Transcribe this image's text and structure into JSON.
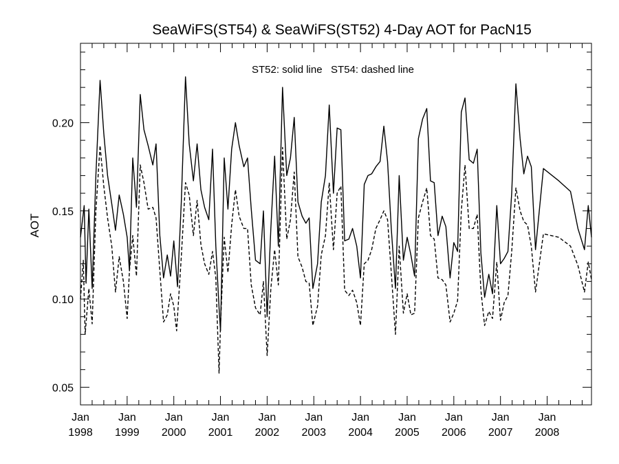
{
  "chart_data": {
    "type": "line",
    "title": "SeaWiFS(ST54) & SeaWiFS(ST52) 4-Day AOT for PacN15",
    "annotation": "ST52: solid line   ST54: dashed line",
    "xlabel": "",
    "ylabel": "AOT",
    "xlim": [
      1998.0,
      2008.95
    ],
    "ylim": [
      0.04,
      0.245
    ],
    "grid": false,
    "legend": "none",
    "x_ticks": [
      {
        "month": "Jan",
        "year": "1998",
        "value": 1998.0
      },
      {
        "month": "Jan",
        "year": "1999",
        "value": 1999.0
      },
      {
        "month": "Jan",
        "year": "2000",
        "value": 2000.0
      },
      {
        "month": "Jan",
        "year": "2001",
        "value": 2001.0
      },
      {
        "month": "Jan",
        "year": "2002",
        "value": 2002.0
      },
      {
        "month": "Jan",
        "year": "2003",
        "value": 2003.0
      },
      {
        "month": "Jan",
        "year": "2004",
        "value": 2004.0
      },
      {
        "month": "Jan",
        "year": "2005",
        "value": 2005.0
      },
      {
        "month": "Jan",
        "year": "2006",
        "value": 2006.0
      },
      {
        "month": "Jan",
        "year": "2007",
        "value": 2007.0
      },
      {
        "month": "Jan",
        "year": "2008",
        "value": 2008.0
      }
    ],
    "y_ticks": [
      "0.05",
      "0.10",
      "0.15",
      "0.20"
    ],
    "series": [
      {
        "style": "solid",
        "color": "#000000",
        "points": [
          [
            1998.0,
            0.135
          ],
          [
            1998.08,
            0.153
          ],
          [
            1998.12,
            0.109
          ],
          [
            1998.18,
            0.151
          ],
          [
            1998.25,
            0.106
          ],
          [
            1998.33,
            0.17
          ],
          [
            1998.42,
            0.224
          ],
          [
            1998.5,
            0.194
          ],
          [
            1998.58,
            0.17
          ],
          [
            1998.67,
            0.154
          ],
          [
            1998.75,
            0.139
          ],
          [
            1998.83,
            0.159
          ],
          [
            1998.92,
            0.148
          ],
          [
            1999.0,
            0.135
          ],
          [
            1999.05,
            0.116
          ],
          [
            1999.12,
            0.18
          ],
          [
            1999.2,
            0.152
          ],
          [
            1999.28,
            0.216
          ],
          [
            1999.36,
            0.196
          ],
          [
            1999.45,
            0.187
          ],
          [
            1999.55,
            0.176
          ],
          [
            1999.62,
            0.188
          ],
          [
            1999.7,
            0.136
          ],
          [
            1999.78,
            0.112
          ],
          [
            1999.86,
            0.125
          ],
          [
            1999.93,
            0.113
          ],
          [
            2000.0,
            0.133
          ],
          [
            2000.08,
            0.107
          ],
          [
            2000.16,
            0.155
          ],
          [
            2000.25,
            0.226
          ],
          [
            2000.33,
            0.188
          ],
          [
            2000.42,
            0.167
          ],
          [
            2000.5,
            0.188
          ],
          [
            2000.58,
            0.162
          ],
          [
            2000.66,
            0.152
          ],
          [
            2000.75,
            0.145
          ],
          [
            2000.83,
            0.185
          ],
          [
            2000.9,
            0.13
          ],
          [
            2000.97,
            0.095
          ],
          [
            2001.0,
            0.082
          ],
          [
            2001.08,
            0.18
          ],
          [
            2001.16,
            0.151
          ],
          [
            2001.24,
            0.185
          ],
          [
            2001.32,
            0.2
          ],
          [
            2001.4,
            0.187
          ],
          [
            2001.5,
            0.175
          ],
          [
            2001.58,
            0.18
          ],
          [
            2001.66,
            0.151
          ],
          [
            2001.75,
            0.122
          ],
          [
            2001.85,
            0.12
          ],
          [
            2001.92,
            0.15
          ],
          [
            2002.0,
            0.09
          ],
          [
            2002.08,
            0.14
          ],
          [
            2002.16,
            0.181
          ],
          [
            2002.24,
            0.13
          ],
          [
            2002.33,
            0.22
          ],
          [
            2002.42,
            0.17
          ],
          [
            2002.5,
            0.18
          ],
          [
            2002.58,
            0.203
          ],
          [
            2002.66,
            0.155
          ],
          [
            2002.75,
            0.147
          ],
          [
            2002.83,
            0.143
          ],
          [
            2002.9,
            0.146
          ],
          [
            2002.98,
            0.106
          ],
          [
            2003.08,
            0.12
          ],
          [
            2003.16,
            0.155
          ],
          [
            2003.25,
            0.17
          ],
          [
            2003.33,
            0.21
          ],
          [
            2003.42,
            0.16
          ],
          [
            2003.5,
            0.197
          ],
          [
            2003.58,
            0.196
          ],
          [
            2003.66,
            0.133
          ],
          [
            2003.75,
            0.134
          ],
          [
            2003.83,
            0.14
          ],
          [
            2003.92,
            0.13
          ],
          [
            2004.0,
            0.112
          ],
          [
            2004.08,
            0.165
          ],
          [
            2004.16,
            0.17
          ],
          [
            2004.24,
            0.171
          ],
          [
            2004.33,
            0.175
          ],
          [
            2004.42,
            0.178
          ],
          [
            2004.5,
            0.198
          ],
          [
            2004.58,
            0.178
          ],
          [
            2004.66,
            0.14
          ],
          [
            2004.75,
            0.106
          ],
          [
            2004.83,
            0.17
          ],
          [
            2004.92,
            0.122
          ],
          [
            2005.0,
            0.135
          ],
          [
            2005.08,
            0.125
          ],
          [
            2005.16,
            0.113
          ],
          [
            2005.24,
            0.191
          ],
          [
            2005.33,
            0.202
          ],
          [
            2005.42,
            0.208
          ],
          [
            2005.5,
            0.167
          ],
          [
            2005.58,
            0.166
          ],
          [
            2005.66,
            0.136
          ],
          [
            2005.75,
            0.147
          ],
          [
            2005.83,
            0.141
          ],
          [
            2005.92,
            0.112
          ],
          [
            2006.0,
            0.132
          ],
          [
            2006.08,
            0.127
          ],
          [
            2006.16,
            0.206
          ],
          [
            2006.24,
            0.214
          ],
          [
            2006.33,
            0.179
          ],
          [
            2006.42,
            0.177
          ],
          [
            2006.5,
            0.185
          ],
          [
            2006.58,
            0.126
          ],
          [
            2006.66,
            0.101
          ],
          [
            2006.75,
            0.114
          ],
          [
            2006.83,
            0.103
          ],
          [
            2006.92,
            0.153
          ],
          [
            2007.0,
            0.12
          ],
          [
            2007.08,
            0.123
          ],
          [
            2007.16,
            0.127
          ],
          [
            2007.24,
            0.16
          ],
          [
            2007.33,
            0.222
          ],
          [
            2007.42,
            0.191
          ],
          [
            2007.5,
            0.171
          ],
          [
            2007.58,
            0.181
          ],
          [
            2007.66,
            0.175
          ],
          [
            2007.75,
            0.128
          ],
          [
            2007.92,
            0.174
          ],
          [
            2008.25,
            0.167
          ],
          [
            2008.5,
            0.161
          ],
          [
            2008.66,
            0.14
          ],
          [
            2008.8,
            0.128
          ],
          [
            2008.88,
            0.153
          ],
          [
            2008.95,
            0.135
          ]
        ]
      },
      {
        "style": "dashed",
        "color": "#000000",
        "points": [
          [
            1998.0,
            0.1
          ],
          [
            1998.06,
            0.122
          ],
          [
            1998.1,
            0.08
          ],
          [
            1998.18,
            0.106
          ],
          [
            1998.25,
            0.086
          ],
          [
            1998.33,
            0.15
          ],
          [
            1998.42,
            0.187
          ],
          [
            1998.5,
            0.164
          ],
          [
            1998.58,
            0.146
          ],
          [
            1998.67,
            0.13
          ],
          [
            1998.75,
            0.104
          ],
          [
            1998.83,
            0.124
          ],
          [
            1998.92,
            0.11
          ],
          [
            1999.0,
            0.089
          ],
          [
            1999.05,
            0.116
          ],
          [
            1999.12,
            0.136
          ],
          [
            1999.2,
            0.113
          ],
          [
            1999.28,
            0.176
          ],
          [
            1999.36,
            0.166
          ],
          [
            1999.45,
            0.151
          ],
          [
            1999.55,
            0.152
          ],
          [
            1999.62,
            0.146
          ],
          [
            1999.7,
            0.116
          ],
          [
            1999.78,
            0.087
          ],
          [
            1999.86,
            0.091
          ],
          [
            1999.93,
            0.103
          ],
          [
            2000.0,
            0.096
          ],
          [
            2000.06,
            0.082
          ],
          [
            2000.16,
            0.124
          ],
          [
            2000.25,
            0.166
          ],
          [
            2000.33,
            0.159
          ],
          [
            2000.42,
            0.136
          ],
          [
            2000.5,
            0.156
          ],
          [
            2000.58,
            0.131
          ],
          [
            2000.66,
            0.12
          ],
          [
            2000.75,
            0.114
          ],
          [
            2000.83,
            0.127
          ],
          [
            2000.9,
            0.112
          ],
          [
            2000.97,
            0.058
          ],
          [
            2001.0,
            0.085
          ],
          [
            2001.08,
            0.135
          ],
          [
            2001.16,
            0.115
          ],
          [
            2001.24,
            0.142
          ],
          [
            2001.32,
            0.162
          ],
          [
            2001.4,
            0.147
          ],
          [
            2001.5,
            0.14
          ],
          [
            2001.58,
            0.14
          ],
          [
            2001.66,
            0.108
          ],
          [
            2001.75,
            0.095
          ],
          [
            2001.85,
            0.091
          ],
          [
            2001.92,
            0.11
          ],
          [
            2002.0,
            0.068
          ],
          [
            2002.08,
            0.106
          ],
          [
            2002.16,
            0.128
          ],
          [
            2002.24,
            0.108
          ],
          [
            2002.33,
            0.186
          ],
          [
            2002.42,
            0.134
          ],
          [
            2002.5,
            0.145
          ],
          [
            2002.58,
            0.172
          ],
          [
            2002.66,
            0.124
          ],
          [
            2002.75,
            0.118
          ],
          [
            2002.83,
            0.11
          ],
          [
            2002.9,
            0.109
          ],
          [
            2002.98,
            0.085
          ],
          [
            2003.08,
            0.096
          ],
          [
            2003.16,
            0.125
          ],
          [
            2003.25,
            0.136
          ],
          [
            2003.33,
            0.166
          ],
          [
            2003.42,
            0.128
          ],
          [
            2003.5,
            0.16
          ],
          [
            2003.58,
            0.164
          ],
          [
            2003.66,
            0.105
          ],
          [
            2003.75,
            0.102
          ],
          [
            2003.83,
            0.105
          ],
          [
            2003.92,
            0.098
          ],
          [
            2004.0,
            0.085
          ],
          [
            2004.08,
            0.12
          ],
          [
            2004.16,
            0.122
          ],
          [
            2004.24,
            0.128
          ],
          [
            2004.33,
            0.14
          ],
          [
            2004.42,
            0.145
          ],
          [
            2004.5,
            0.15
          ],
          [
            2004.58,
            0.145
          ],
          [
            2004.66,
            0.115
          ],
          [
            2004.75,
            0.08
          ],
          [
            2004.83,
            0.13
          ],
          [
            2004.92,
            0.092
          ],
          [
            2005.0,
            0.103
          ],
          [
            2005.08,
            0.091
          ],
          [
            2005.16,
            0.092
          ],
          [
            2005.24,
            0.146
          ],
          [
            2005.33,
            0.155
          ],
          [
            2005.42,
            0.163
          ],
          [
            2005.5,
            0.136
          ],
          [
            2005.58,
            0.134
          ],
          [
            2005.66,
            0.112
          ],
          [
            2005.75,
            0.111
          ],
          [
            2005.83,
            0.108
          ],
          [
            2005.92,
            0.087
          ],
          [
            2006.0,
            0.092
          ],
          [
            2006.08,
            0.099
          ],
          [
            2006.16,
            0.15
          ],
          [
            2006.24,
            0.176
          ],
          [
            2006.33,
            0.14
          ],
          [
            2006.42,
            0.14
          ],
          [
            2006.5,
            0.148
          ],
          [
            2006.58,
            0.105
          ],
          [
            2006.66,
            0.085
          ],
          [
            2006.75,
            0.093
          ],
          [
            2006.83,
            0.089
          ],
          [
            2006.92,
            0.121
          ],
          [
            2007.0,
            0.088
          ],
          [
            2007.08,
            0.098
          ],
          [
            2007.16,
            0.102
          ],
          [
            2007.24,
            0.127
          ],
          [
            2007.33,
            0.163
          ],
          [
            2007.42,
            0.15
          ],
          [
            2007.5,
            0.144
          ],
          [
            2007.58,
            0.142
          ],
          [
            2007.66,
            0.13
          ],
          [
            2007.75,
            0.104
          ],
          [
            2007.92,
            0.137
          ],
          [
            2008.25,
            0.135
          ],
          [
            2008.5,
            0.13
          ],
          [
            2008.66,
            0.119
          ],
          [
            2008.8,
            0.104
          ],
          [
            2008.88,
            0.121
          ],
          [
            2008.95,
            0.111
          ]
        ]
      }
    ]
  }
}
